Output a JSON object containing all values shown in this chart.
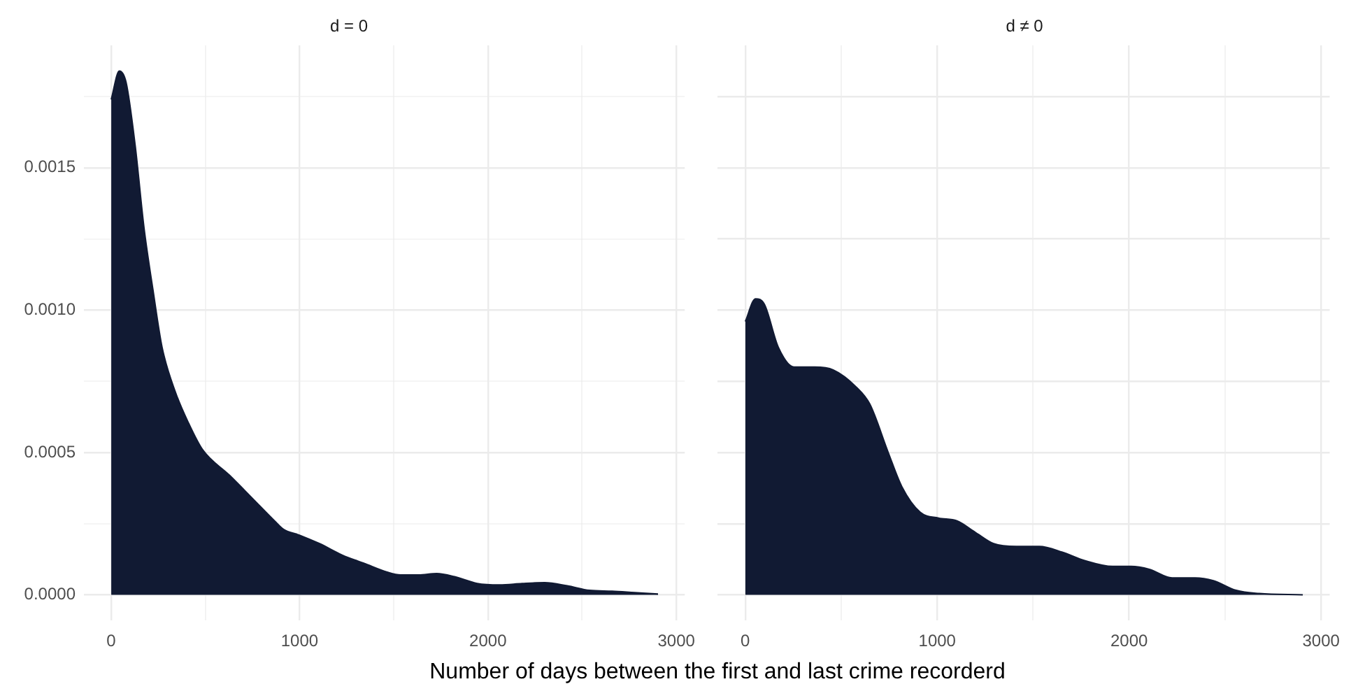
{
  "chart_data": [
    {
      "type": "area",
      "title": "d = 0",
      "xlabel": "Number of days between the first and last crime recorderd",
      "xlim": [
        -145,
        3045
      ],
      "ylim": [
        -9e-05,
        0.00193
      ],
      "xticks": [
        0,
        {
          "value": 500,
          "label": null
        },
        1000,
        {
          "value": 1500,
          "label": null
        },
        2000,
        {
          "value": 2500,
          "label": null
        },
        3000
      ],
      "yticks": [
        {
          "value": 0,
          "label": "0.0000"
        },
        {
          "value": 0.00025,
          "label": null
        },
        {
          "value": 0.0005,
          "label": "0.0005"
        },
        {
          "value": 0.00075,
          "label": null
        },
        {
          "value": 0.001,
          "label": "0.0010"
        },
        {
          "value": 0.00125,
          "label": null
        },
        {
          "value": 0.0015,
          "label": "0.0015"
        },
        {
          "value": 0.00175,
          "label": null
        }
      ],
      "grid": true,
      "series": [
        {
          "color": "#111a33",
          "x": [
            0,
            43,
            79,
            127,
            174,
            222,
            270,
            342,
            413,
            485,
            628,
            748,
            867,
            915,
            999,
            1106,
            1226,
            1345,
            1465,
            1536,
            1632,
            1728,
            1823,
            1943,
            2062,
            2182,
            2301,
            2421,
            2540,
            2659,
            2779,
            2903
          ],
          "values": [
            0.00174,
            0.00184,
            0.0018,
            0.00158,
            0.00129,
            0.00107,
            0.00087,
            0.00071,
            0.0006,
            0.00051,
            0.00042,
            0.00034,
            0.00026,
            0.00023,
            0.00021,
            0.00018,
            0.00014,
            0.00011,
            8e-05,
            7e-05,
            7e-05,
            7.5e-05,
            6.4e-05,
            4e-05,
            3.5e-05,
            4e-05,
            4.3e-05,
            3.2e-05,
            1.6e-05,
            1.3e-05,
            8e-06,
            3e-06
          ]
        }
      ]
    },
    {
      "type": "area",
      "title": "d ≠ 0",
      "xlim": [
        -145,
        3045
      ],
      "ylim": [
        -9e-05,
        0.00193
      ],
      "xticks": [
        0,
        {
          "value": 500,
          "label": null
        },
        1000,
        {
          "value": 1500,
          "label": null
        },
        2000,
        {
          "value": 2500,
          "label": null
        },
        3000
      ],
      "yticks": [
        {
          "value": 0,
          "label": null
        },
        {
          "value": 0.00025,
          "label": null
        },
        {
          "value": 0.0005,
          "label": null
        },
        {
          "value": 0.00075,
          "label": null
        },
        {
          "value": 0.001,
          "label": null
        },
        {
          "value": 0.00125,
          "label": null
        },
        {
          "value": 0.0015,
          "label": null
        },
        {
          "value": 0.00175,
          "label": null
        }
      ],
      "grid": true,
      "tick_labels": "x",
      "series": [
        {
          "color": "#111a33",
          "x": [
            0,
            53,
            100,
            172,
            255,
            363,
            458,
            578,
            649,
            745,
            816,
            912,
            1007,
            1103,
            1198,
            1294,
            1413,
            1532,
            1652,
            1771,
            1914,
            2010,
            2105,
            2224,
            2344,
            2439,
            2558,
            2678,
            2905
          ],
          "values": [
            0.00096,
            0.00104,
            0.00102,
            0.00087,
            0.0008,
            0.0008,
            0.00079,
            0.00073,
            0.00067,
            0.0005,
            0.00038,
            0.00029,
            0.00027,
            0.00026,
            0.00022,
            0.00018,
            0.00017,
            0.00017,
            0.00015,
            0.00012,
            0.0001,
            0.0001,
            9e-05,
            6e-05,
            6e-05,
            5e-05,
            1.6e-05,
            5e-06,
            0
          ]
        }
      ]
    }
  ]
}
